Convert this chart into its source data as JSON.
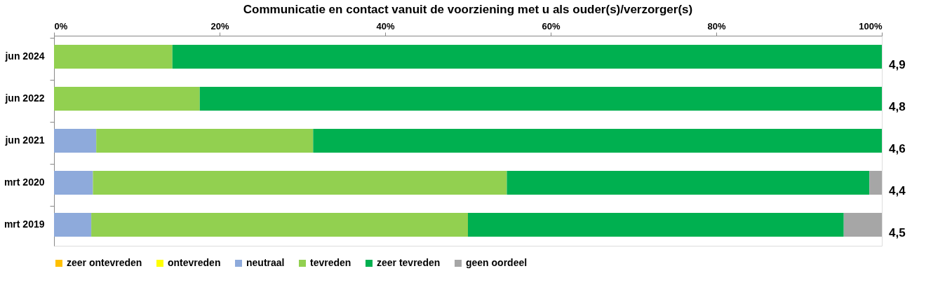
{
  "chart_data": {
    "type": "bar",
    "orientation": "horizontal",
    "stacked": true,
    "title": "Communicatie en contact vanuit de voorziening met u als ouder(s)/verzorger(s)",
    "categories": [
      "jun 2024",
      "jun 2022",
      "jun 2021",
      "mrt 2020",
      "mrt 2019"
    ],
    "series": [
      {
        "name": "zeer ontevreden",
        "color": "#ffc000",
        "values": [
          0,
          0,
          0,
          0,
          0
        ]
      },
      {
        "name": "ontevreden",
        "color": "#ffff00",
        "values": [
          0,
          0,
          0,
          0,
          0
        ]
      },
      {
        "name": "neutraal",
        "color": "#8eaadb",
        "values": [
          0,
          0,
          5.1,
          4.7,
          4.5
        ]
      },
      {
        "name": "tevreden",
        "color": "#92d050",
        "values": [
          14.3,
          17.6,
          26.2,
          50.0,
          45.5
        ]
      },
      {
        "name": "zeer tevreden",
        "color": "#00b050",
        "values": [
          85.7,
          82.4,
          68.7,
          43.8,
          45.4
        ]
      },
      {
        "name": "geen oordeel",
        "color": "#a6a6a6",
        "values": [
          0,
          0,
          0,
          1.5,
          4.6
        ]
      }
    ],
    "xlim": [
      0,
      100
    ],
    "xticks": [
      {
        "value": 0,
        "label": "0%"
      },
      {
        "value": 20,
        "label": "20%"
      },
      {
        "value": 40,
        "label": "40%"
      },
      {
        "value": 60,
        "label": "60%"
      },
      {
        "value": 80,
        "label": "80%"
      },
      {
        "value": 100,
        "label": "100%"
      }
    ],
    "annotations": [
      "4,9",
      "4,8",
      "4,6",
      "4,4",
      "4,5"
    ],
    "legend": "bottom",
    "grid": false
  }
}
